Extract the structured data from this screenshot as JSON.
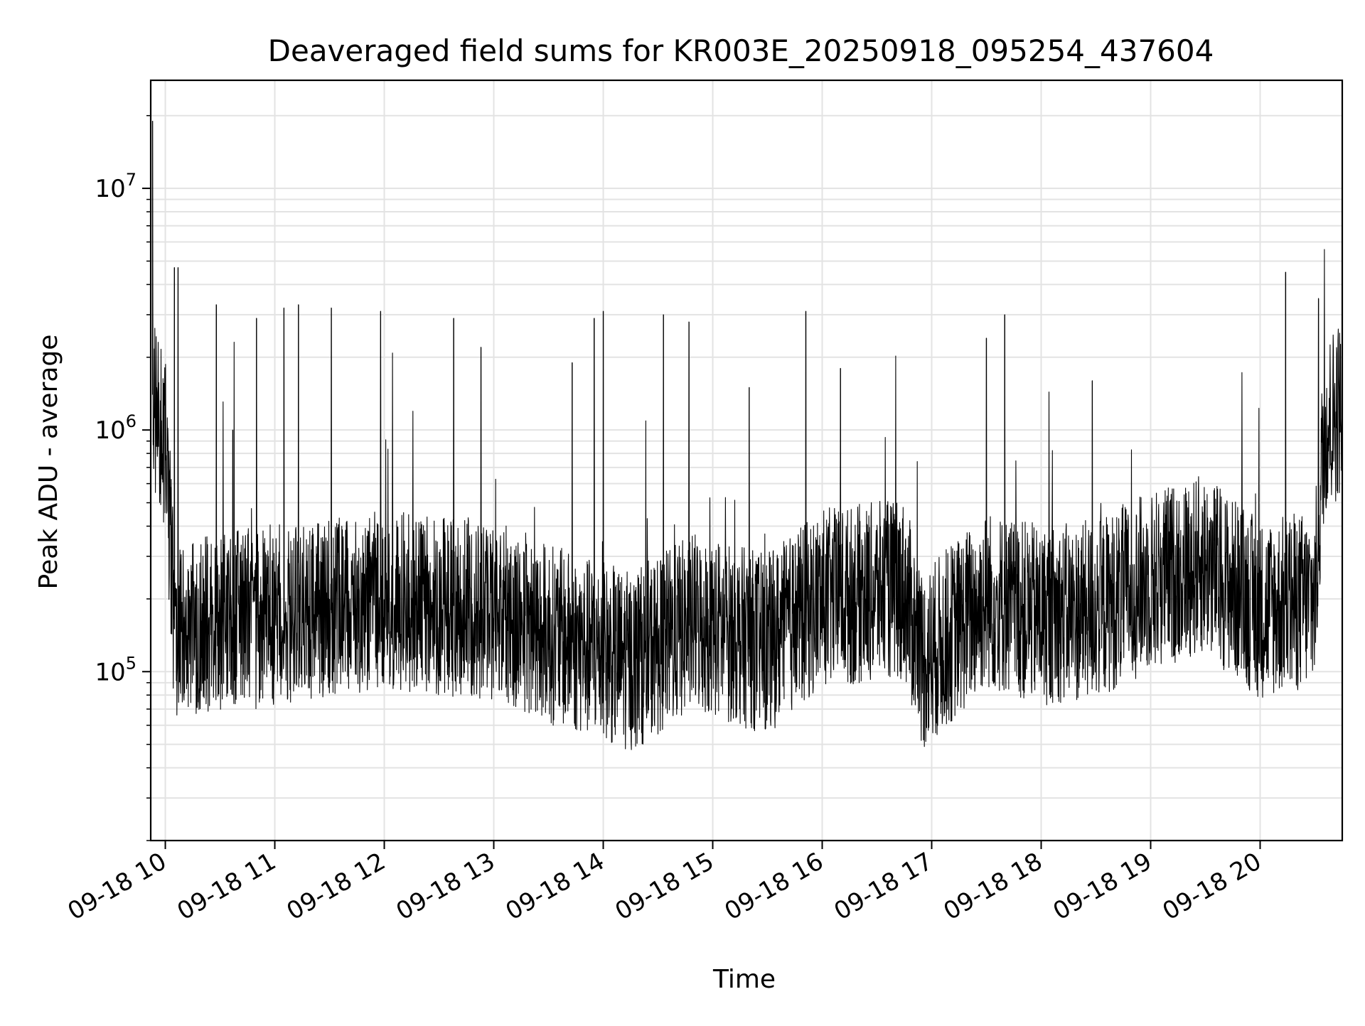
{
  "chart_data": {
    "type": "line",
    "title": "Deaveraged field sums for KR003E_20250918_095254_437604",
    "xlabel": "Time",
    "ylabel": "Peak ADU - average",
    "yscale": "log",
    "ylim": [
      20000,
      28000000
    ],
    "xlim": [
      "2025-09-18 09:52",
      "2025-09-18 20:45"
    ],
    "grid": true,
    "legend": "none",
    "line_color": "#000000",
    "x_ticks": [
      {
        "t": "2025-09-18 10:00",
        "label": "09-18 10"
      },
      {
        "t": "2025-09-18 11:00",
        "label": "09-18 11"
      },
      {
        "t": "2025-09-18 12:00",
        "label": "09-18 12"
      },
      {
        "t": "2025-09-18 13:00",
        "label": "09-18 13"
      },
      {
        "t": "2025-09-18 14:00",
        "label": "09-18 14"
      },
      {
        "t": "2025-09-18 15:00",
        "label": "09-18 15"
      },
      {
        "t": "2025-09-18 16:00",
        "label": "09-18 16"
      },
      {
        "t": "2025-09-18 17:00",
        "label": "09-18 17"
      },
      {
        "t": "2025-09-18 18:00",
        "label": "09-18 18"
      },
      {
        "t": "2025-09-18 19:00",
        "label": "09-18 19"
      },
      {
        "t": "2025-09-18 20:00",
        "label": "09-18 20"
      }
    ],
    "y_ticks": [
      {
        "value": 100000,
        "base": "10",
        "exp": "5"
      },
      {
        "value": 1000000,
        "base": "10",
        "exp": "6"
      },
      {
        "value": 10000000,
        "base": "10",
        "exp": "7"
      }
    ],
    "baseline": [
      {
        "t": "2025-09-18 09:53",
        "y": 1400000
      },
      {
        "t": "2025-09-18 10:00",
        "y": 900000
      },
      {
        "t": "2025-09-18 10:05",
        "y": 150000
      },
      {
        "t": "2025-09-18 10:30",
        "y": 160000
      },
      {
        "t": "2025-09-18 11:00",
        "y": 170000
      },
      {
        "t": "2025-09-18 12:00",
        "y": 200000
      },
      {
        "t": "2025-09-18 13:00",
        "y": 180000
      },
      {
        "t": "2025-09-18 13:45",
        "y": 130000
      },
      {
        "t": "2025-09-18 14:15",
        "y": 110000
      },
      {
        "t": "2025-09-18 14:50",
        "y": 160000
      },
      {
        "t": "2025-09-18 15:30",
        "y": 130000
      },
      {
        "t": "2025-09-18 16:00",
        "y": 200000
      },
      {
        "t": "2025-09-18 16:45",
        "y": 220000
      },
      {
        "t": "2025-09-18 16:55",
        "y": 110000
      },
      {
        "t": "2025-09-18 17:30",
        "y": 200000
      },
      {
        "t": "2025-09-18 18:00",
        "y": 170000
      },
      {
        "t": "2025-09-18 18:30",
        "y": 180000
      },
      {
        "t": "2025-09-18 19:00",
        "y": 240000
      },
      {
        "t": "2025-09-18 19:30",
        "y": 280000
      },
      {
        "t": "2025-09-18 20:00",
        "y": 180000
      },
      {
        "t": "2025-09-18 20:30",
        "y": 200000
      },
      {
        "t": "2025-09-18 20:35",
        "y": 1000000
      },
      {
        "t": "2025-09-18 20:45",
        "y": 1300000
      }
    ],
    "spikes": [
      {
        "t": "2025-09-18 09:53",
        "y": 19000000
      },
      {
        "t": "2025-09-18 10:05",
        "y": 4700000
      },
      {
        "t": "2025-09-18 10:07",
        "y": 4700000
      },
      {
        "t": "2025-09-18 10:28",
        "y": 3300000
      },
      {
        "t": "2025-09-18 10:37",
        "y": 1000000
      },
      {
        "t": "2025-09-18 10:50",
        "y": 2900000
      },
      {
        "t": "2025-09-18 11:05",
        "y": 3200000
      },
      {
        "t": "2025-09-18 11:13",
        "y": 3300000
      },
      {
        "t": "2025-09-18 11:31",
        "y": 3200000
      },
      {
        "t": "2025-09-18 11:58",
        "y": 3100000
      },
      {
        "t": "2025-09-18 12:38",
        "y": 2900000
      },
      {
        "t": "2025-09-18 12:53",
        "y": 2200000
      },
      {
        "t": "2025-09-18 13:43",
        "y": 1900000
      },
      {
        "t": "2025-09-18 13:55",
        "y": 2900000
      },
      {
        "t": "2025-09-18 14:00",
        "y": 3100000
      },
      {
        "t": "2025-09-18 14:33",
        "y": 3000000
      },
      {
        "t": "2025-09-18 14:47",
        "y": 2800000
      },
      {
        "t": "2025-09-18 15:20",
        "y": 1500000
      },
      {
        "t": "2025-09-18 15:51",
        "y": 3100000
      },
      {
        "t": "2025-09-18 16:10",
        "y": 1800000
      },
      {
        "t": "2025-09-18 17:30",
        "y": 2400000
      },
      {
        "t": "2025-09-18 17:40",
        "y": 3000000
      },
      {
        "t": "2025-09-18 18:28",
        "y": 1600000
      },
      {
        "t": "2025-09-18 20:14",
        "y": 4500000
      },
      {
        "t": "2025-09-18 20:32",
        "y": 3500000
      }
    ]
  }
}
